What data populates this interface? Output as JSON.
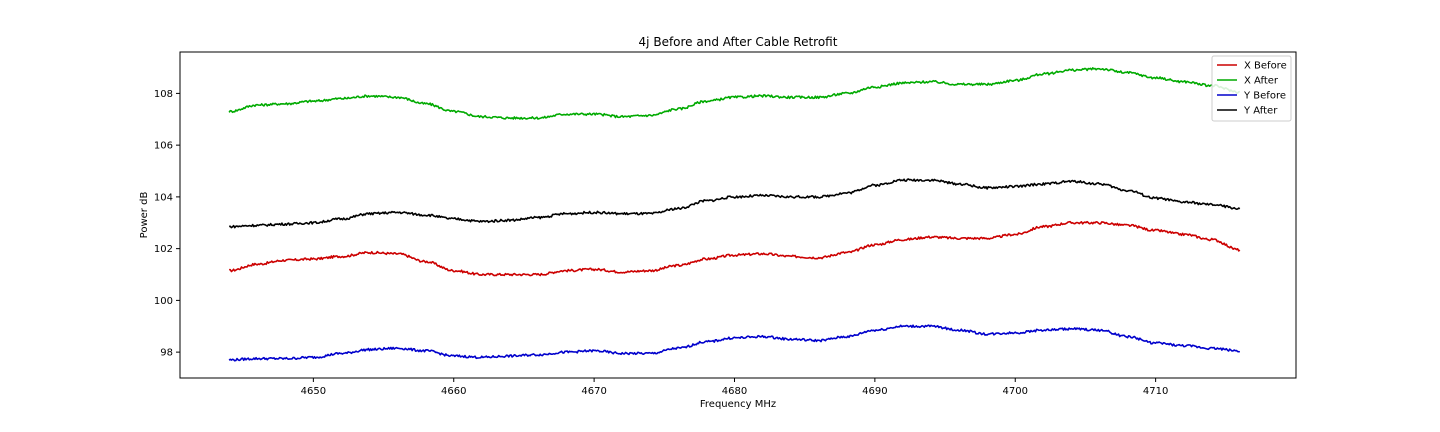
{
  "chart_data": {
    "type": "line",
    "title": "4j Before and After Cable Retrofit",
    "xlabel": "Frequency MHz",
    "ylabel": "Power dB",
    "xlim": [
      4640.5,
      4720
    ],
    "ylim": [
      97,
      109.6
    ],
    "xticks": [
      4650,
      4660,
      4670,
      4680,
      4690,
      4700,
      4710
    ],
    "yticks": [
      98,
      100,
      102,
      104,
      106,
      108
    ],
    "grid": false,
    "legend_position": "top-right",
    "series": [
      {
        "name": "X Before",
        "color": "#cc0000",
        "x": [
          4644,
          4646,
          4648,
          4650,
          4652,
          4654,
          4656,
          4658,
          4660,
          4662,
          4664,
          4666,
          4668,
          4670,
          4672,
          4674,
          4676,
          4678,
          4680,
          4682,
          4684,
          4686,
          4688,
          4690,
          4692,
          4694,
          4696,
          4698,
          4700,
          4702,
          4704,
          4706,
          4708,
          4710,
          4712,
          4714,
          4716
        ],
        "values": [
          101.15,
          101.4,
          101.55,
          101.6,
          101.7,
          101.85,
          101.8,
          101.5,
          101.15,
          101.0,
          101.0,
          101.0,
          101.15,
          101.2,
          101.1,
          101.15,
          101.35,
          101.6,
          101.75,
          101.8,
          101.7,
          101.65,
          101.85,
          102.15,
          102.35,
          102.45,
          102.4,
          102.4,
          102.55,
          102.85,
          103.0,
          103.0,
          102.9,
          102.7,
          102.55,
          102.35,
          101.95
        ]
      },
      {
        "name": "X After",
        "color": "#00aa00",
        "x": [
          4644,
          4646,
          4648,
          4650,
          4652,
          4654,
          4656,
          4658,
          4660,
          4662,
          4664,
          4666,
          4668,
          4670,
          4672,
          4674,
          4676,
          4678,
          4680,
          4682,
          4684,
          4686,
          4688,
          4690,
          4692,
          4694,
          4696,
          4698,
          4700,
          4702,
          4704,
          4706,
          4708,
          4710,
          4712,
          4714,
          4716
        ],
        "values": [
          107.3,
          107.55,
          107.6,
          107.7,
          107.8,
          107.9,
          107.85,
          107.6,
          107.3,
          107.1,
          107.05,
          107.05,
          107.2,
          107.2,
          107.1,
          107.15,
          107.4,
          107.7,
          107.85,
          107.9,
          107.85,
          107.85,
          108.0,
          108.25,
          108.4,
          108.45,
          108.35,
          108.35,
          108.5,
          108.75,
          108.9,
          108.95,
          108.8,
          108.6,
          108.45,
          108.3,
          108.05
        ]
      },
      {
        "name": "Y Before",
        "color": "#0000cc",
        "x": [
          4644,
          4646,
          4648,
          4650,
          4652,
          4654,
          4656,
          4658,
          4660,
          4662,
          4664,
          4666,
          4668,
          4670,
          4672,
          4674,
          4676,
          4678,
          4680,
          4682,
          4684,
          4686,
          4688,
          4690,
          4692,
          4694,
          4696,
          4698,
          4700,
          4702,
          4704,
          4706,
          4708,
          4710,
          4712,
          4714,
          4716
        ],
        "values": [
          97.7,
          97.75,
          97.75,
          97.8,
          97.95,
          98.1,
          98.15,
          98.05,
          97.85,
          97.8,
          97.85,
          97.9,
          98.0,
          98.05,
          97.95,
          97.95,
          98.15,
          98.4,
          98.55,
          98.6,
          98.5,
          98.45,
          98.6,
          98.85,
          99.0,
          99.0,
          98.85,
          98.7,
          98.75,
          98.85,
          98.9,
          98.85,
          98.6,
          98.35,
          98.25,
          98.15,
          98.05
        ]
      },
      {
        "name": "Y After",
        "color": "#000000",
        "x": [
          4644,
          4646,
          4648,
          4650,
          4652,
          4654,
          4656,
          4658,
          4660,
          4662,
          4664,
          4666,
          4668,
          4670,
          4672,
          4674,
          4676,
          4678,
          4680,
          4682,
          4684,
          4686,
          4688,
          4690,
          4692,
          4694,
          4696,
          4698,
          4700,
          4702,
          4704,
          4706,
          4708,
          4710,
          4712,
          4714,
          4716
        ],
        "values": [
          102.85,
          102.9,
          102.95,
          103.0,
          103.15,
          103.35,
          103.4,
          103.3,
          103.15,
          103.05,
          103.1,
          103.2,
          103.35,
          103.4,
          103.35,
          103.35,
          103.55,
          103.85,
          104.0,
          104.05,
          104.0,
          104.0,
          104.15,
          104.45,
          104.65,
          104.65,
          104.5,
          104.35,
          104.4,
          104.5,
          104.6,
          104.5,
          104.25,
          103.95,
          103.8,
          103.7,
          103.55
        ]
      }
    ]
  }
}
